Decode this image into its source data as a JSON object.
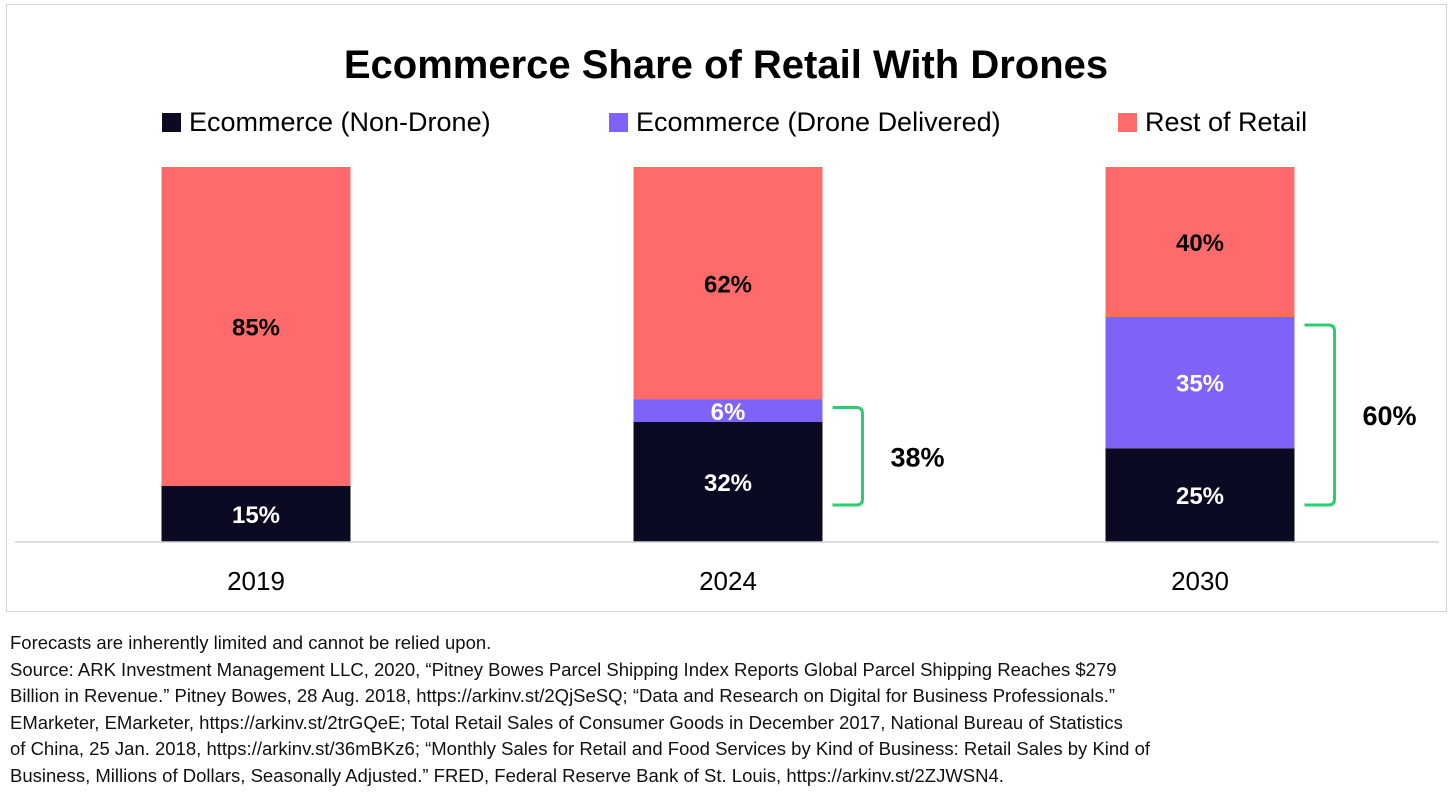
{
  "colors": {
    "ecommerce_non_drone": "#0b0a23",
    "ecommerce_drone": "#7f62f8",
    "rest_of_retail": "#ff6b6b",
    "bracket": "#2ecc71",
    "axis": "#d0d0d0",
    "label_on_dark": "#ffffff",
    "label_on_light": "#000000"
  },
  "chart_data": {
    "type": "bar",
    "stacked": true,
    "title": "Ecommerce Share of Retail With Drones",
    "categories": [
      "2019",
      "2024",
      "2030"
    ],
    "series": [
      {
        "name": "Ecommerce (Non-Drone)",
        "values": [
          15,
          32,
          25
        ],
        "labels": [
          "15%",
          "32%",
          "25%"
        ]
      },
      {
        "name": "Ecommerce (Drone Delivered)",
        "values": [
          0,
          6,
          35
        ],
        "labels": [
          "",
          "6%",
          "35%"
        ]
      },
      {
        "name": "Rest of Retail",
        "values": [
          85,
          62,
          40
        ],
        "labels": [
          "85%",
          "62%",
          "40%"
        ]
      }
    ],
    "brackets": [
      {
        "category": "2024",
        "from": 0,
        "to": 38,
        "label": "38%"
      },
      {
        "category": "2030",
        "from": 0,
        "to": 60,
        "label": "60%"
      }
    ],
    "ylim": [
      0,
      100
    ],
    "legend": "top",
    "grid": false
  },
  "footnotes": [
    "Forecasts are inherently limited and cannot be relied upon.",
    "Source: ARK Investment Management LLC, 2020, “Pitney Bowes Parcel Shipping Index Reports Global Parcel Shipping Reaches $279",
    "Billion in Revenue.” Pitney Bowes, 28 Aug. 2018, https://arkinv.st/2QjSeSQ; “Data and Research on Digital for Business Professionals.”",
    "EMarketer, EMarketer, https://arkinv.st/2trGQeE; Total Retail Sales of Consumer Goods in December 2017, National Bureau of Statistics",
    "of China, 25 Jan. 2018, https://arkinv.st/36mBKz6; “Monthly Sales for Retail and Food Services by Kind of Business: Retail Sales by Kind of",
    "Business, Millions of Dollars, Seasonally Adjusted.” FRED, Federal Reserve Bank of St. Louis, https://arkinv.st/2ZJWSN4."
  ]
}
